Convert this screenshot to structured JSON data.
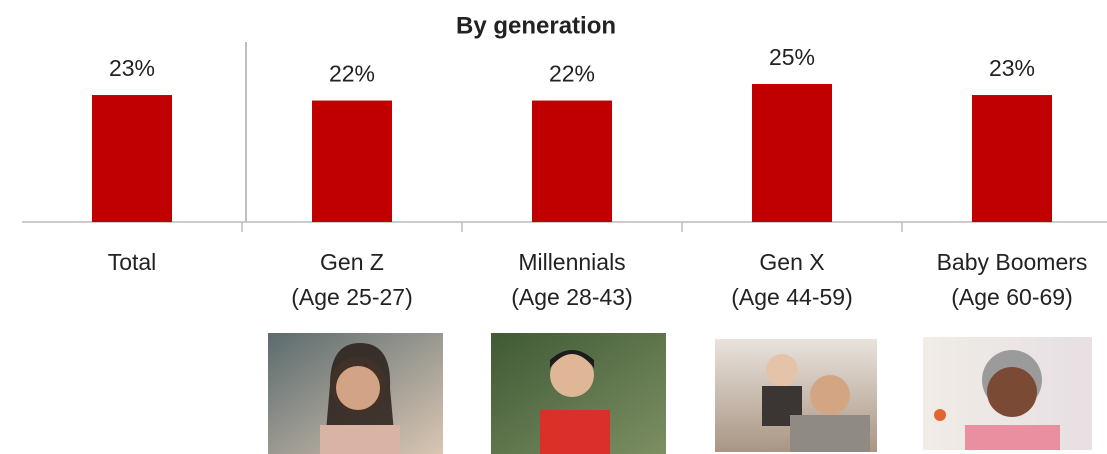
{
  "chart_data": {
    "type": "bar",
    "title": "By generation",
    "categories": [
      "Total",
      "Gen Z",
      "Millennials",
      "Gen X",
      "Baby Boomers"
    ],
    "category_sublabels": [
      null,
      "(Age 25-27)",
      "(Age 28-43)",
      "(Age 44-59)",
      "(Age 60-69)"
    ],
    "values": [
      23,
      22,
      22,
      25,
      23
    ],
    "value_labels": [
      "23%",
      "22%",
      "22%",
      "25%",
      "23%"
    ],
    "color": "#c00000"
  }
}
